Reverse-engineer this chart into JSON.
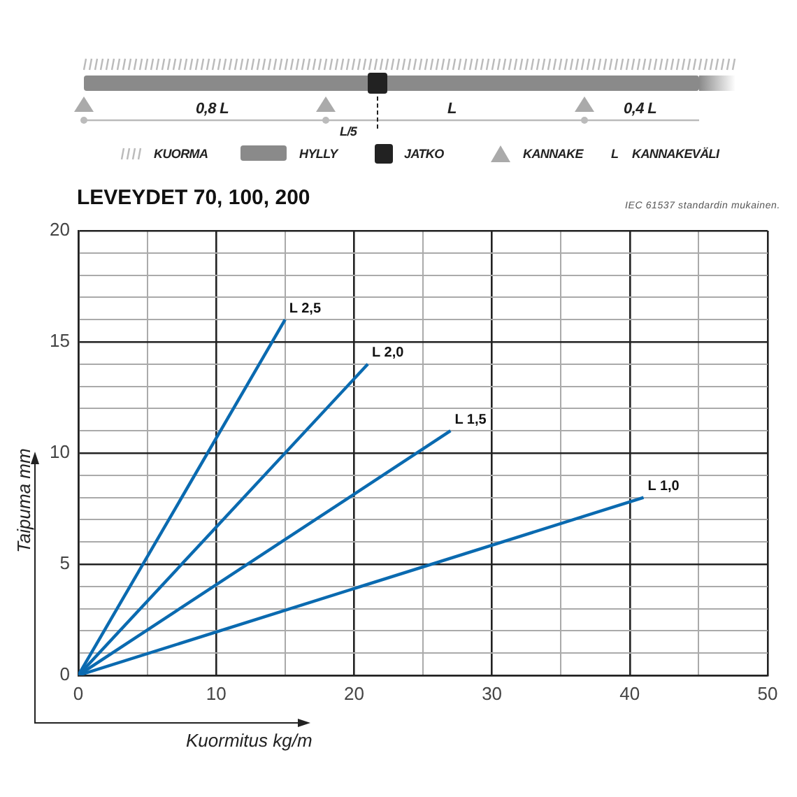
{
  "chart_data": {
    "type": "line",
    "title": "LEVEYDET 70, 100, 200",
    "xlabel": "Kuormitus kg/m",
    "ylabel": "Taipuma mm",
    "annotations": [
      "0,8 L",
      "L",
      "0,4 L",
      "L/5",
      "KUORMA",
      "HYLLY",
      "JATKO",
      "KANNAKE",
      "L",
      "KANNAKEVÄLI",
      "IEC 61537 standardin mukainen."
    ],
    "series": [
      {
        "name": "L 2,5",
        "color": "#0a6ab0",
        "x": [
          0,
          15
        ],
        "values": [
          0,
          16
        ]
      },
      {
        "name": "L 2,0",
        "color": "#0a6ab0",
        "x": [
          0,
          21
        ],
        "values": [
          0,
          14
        ]
      },
      {
        "name": "L 1,5",
        "color": "#0a6ab0",
        "x": [
          0,
          27
        ],
        "values": [
          0,
          11
        ]
      },
      {
        "name": "L 1,0",
        "color": "#0a6ab0",
        "x": [
          0,
          41
        ],
        "values": [
          0,
          8
        ]
      }
    ],
    "xlim": [
      0,
      50
    ],
    "xticks": [
      0,
      {
        "value": 5,
        "label": null
      },
      10,
      {
        "value": 15,
        "label": null
      },
      20,
      {
        "value": 25,
        "label": null
      },
      30,
      {
        "value": 35,
        "label": null
      },
      40,
      {
        "value": 45,
        "label": null
      },
      50
    ],
    "ylim": [
      0,
      20
    ],
    "yticks": [
      0,
      {
        "value": 1,
        "label": null
      },
      {
        "value": 2,
        "label": null
      },
      {
        "value": 3,
        "label": null
      },
      {
        "value": 4,
        "label": null
      },
      5,
      {
        "value": 6,
        "label": null
      },
      {
        "value": 7,
        "label": null
      },
      {
        "value": 8,
        "label": null
      },
      {
        "value": 9,
        "label": null
      },
      10,
      {
        "value": 11,
        "label": null
      },
      {
        "value": 12,
        "label": null
      },
      {
        "value": 13,
        "label": null
      },
      {
        "value": 14,
        "label": null
      },
      15,
      {
        "value": 16,
        "label": null
      },
      {
        "value": 17,
        "label": null
      },
      {
        "value": 18,
        "label": null
      },
      {
        "value": 19,
        "label": null
      },
      20
    ],
    "grid": true,
    "legend": false,
    "marker": "none",
    "line_style": "solid"
  }
}
